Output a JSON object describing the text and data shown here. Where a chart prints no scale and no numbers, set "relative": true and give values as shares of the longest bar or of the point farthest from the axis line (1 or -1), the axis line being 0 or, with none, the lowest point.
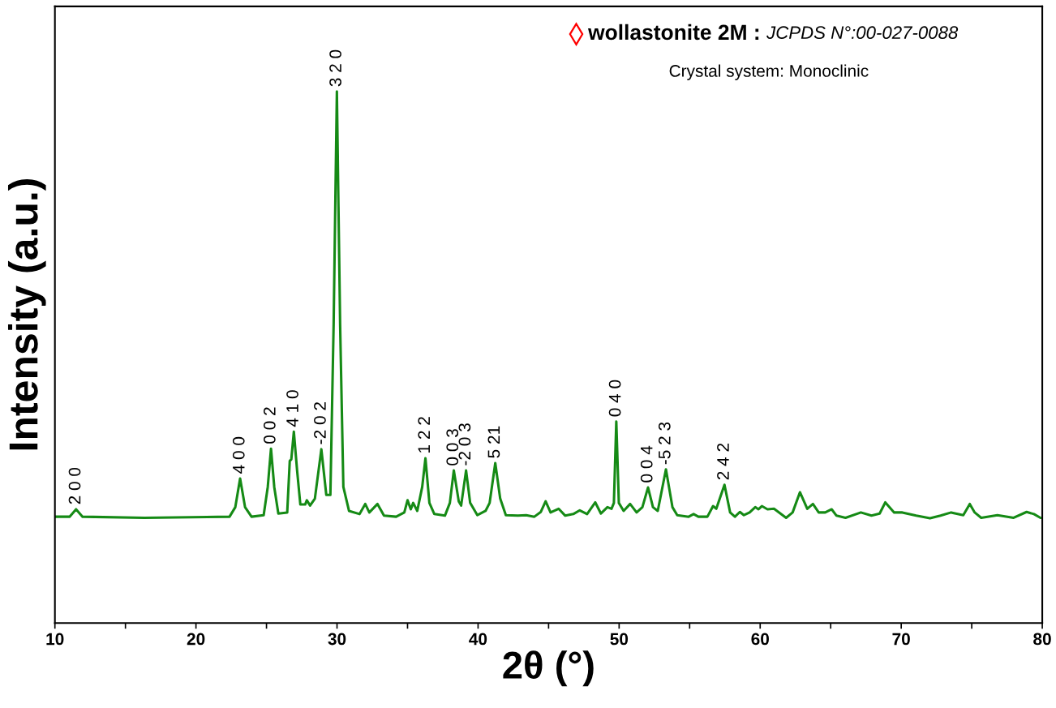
{
  "chart_data": {
    "type": "line",
    "relative": true,
    "xlabel": "2θ (°)",
    "ylabel": "Intensity (a.u.)",
    "xlim": [
      10,
      80
    ],
    "xticks": [
      10,
      {
        "value": 15,
        "label": null
      },
      20,
      {
        "value": 25,
        "label": null
      },
      30,
      {
        "value": 35,
        "label": null
      },
      40,
      {
        "value": 45,
        "label": null
      },
      50,
      {
        "value": 55,
        "label": null
      },
      60,
      {
        "value": 65,
        "label": null
      },
      70,
      {
        "value": 75,
        "label": null
      },
      80
    ],
    "tick_labels": "x",
    "grid": false,
    "legend": false,
    "series": [
      {
        "color": "#158a15",
        "x": [
          10.0,
          11.04,
          11.5,
          11.96,
          16.34,
          22.38,
          22.79,
          23.13,
          23.48,
          23.94,
          24.8,
          25.09,
          25.32,
          25.55,
          25.84,
          26.47,
          26.65,
          26.76,
          26.94,
          27.17,
          27.4,
          27.74,
          27.86,
          28.09,
          28.43,
          28.89,
          29.24,
          29.53,
          29.76,
          29.99,
          30.22,
          30.45,
          30.85,
          31.6,
          32.0,
          32.29,
          32.87,
          33.33,
          34.19,
          34.77,
          35.0,
          35.23,
          35.4,
          35.69,
          36.04,
          36.27,
          36.55,
          36.9,
          37.65,
          38.0,
          38.28,
          38.63,
          38.8,
          39.15,
          39.44,
          39.95,
          40.53,
          40.82,
          41.22,
          41.57,
          41.97,
          42.83,
          43.41,
          43.99,
          44.45,
          44.79,
          45.14,
          45.71,
          46.18,
          46.75,
          47.21,
          47.73,
          48.31,
          48.71,
          49.17,
          49.46,
          49.63,
          49.8,
          49.98,
          50.32,
          50.78,
          51.24,
          51.65,
          52.05,
          52.4,
          52.74,
          53.32,
          53.78,
          54.12,
          54.93,
          55.28,
          55.62,
          56.26,
          56.66,
          56.89,
          57.47,
          57.87,
          58.21,
          58.56,
          58.85,
          59.25,
          59.65,
          59.88,
          60.12,
          60.52,
          60.98,
          61.84,
          62.3,
          62.82,
          63.34,
          63.74,
          64.15,
          64.61,
          65.07,
          65.41,
          66.05,
          67.14,
          67.89,
          68.47,
          68.87,
          69.5,
          70.08,
          71.06,
          72.04,
          72.79,
          73.54,
          74.4,
          74.86,
          75.21,
          75.67,
          76.82,
          77.97,
          78.89,
          79.41,
          79.87
        ],
        "values": [
          0.2,
          0.2,
          0.214,
          0.2,
          0.198,
          0.2,
          0.218,
          0.272,
          0.218,
          0.2,
          0.203,
          0.256,
          0.328,
          0.256,
          0.206,
          0.208,
          0.305,
          0.308,
          0.36,
          0.287,
          0.223,
          0.223,
          0.231,
          0.221,
          0.234,
          0.327,
          0.241,
          0.241,
          0.562,
          1.0,
          0.562,
          0.256,
          0.211,
          0.205,
          0.224,
          0.208,
          0.224,
          0.202,
          0.2,
          0.208,
          0.231,
          0.214,
          0.226,
          0.211,
          0.256,
          0.31,
          0.226,
          0.205,
          0.202,
          0.226,
          0.287,
          0.229,
          0.221,
          0.287,
          0.226,
          0.203,
          0.211,
          0.226,
          0.301,
          0.234,
          0.203,
          0.202,
          0.203,
          0.2,
          0.209,
          0.229,
          0.208,
          0.215,
          0.202,
          0.205,
          0.212,
          0.205,
          0.227,
          0.206,
          0.218,
          0.215,
          0.226,
          0.379,
          0.226,
          0.211,
          0.224,
          0.208,
          0.218,
          0.255,
          0.218,
          0.211,
          0.289,
          0.218,
          0.203,
          0.2,
          0.205,
          0.2,
          0.2,
          0.22,
          0.215,
          0.26,
          0.208,
          0.2,
          0.209,
          0.203,
          0.208,
          0.218,
          0.214,
          0.22,
          0.214,
          0.215,
          0.198,
          0.208,
          0.246,
          0.215,
          0.224,
          0.208,
          0.208,
          0.214,
          0.202,
          0.198,
          0.208,
          0.202,
          0.206,
          0.227,
          0.208,
          0.208,
          0.202,
          0.197,
          0.202,
          0.208,
          0.203,
          0.224,
          0.208,
          0.198,
          0.203,
          0.198,
          0.209,
          0.205,
          0.198
        ]
      }
    ],
    "annotations": [
      {
        "text": "2 0 0",
        "x": 11.5,
        "y": 0.214
      },
      {
        "text": "4 0 0",
        "x": 23.13,
        "y": 0.272
      },
      {
        "text": "0 0 2",
        "x": 25.32,
        "y": 0.328
      },
      {
        "text": "4 1 0",
        "x": 26.94,
        "y": 0.36
      },
      {
        "text": "-2 0 2",
        "x": 28.89,
        "y": 0.327
      },
      {
        "text": "3 2 0",
        "x": 29.99,
        "y": 1.0
      },
      {
        "text": "1 2 2",
        "x": 36.27,
        "y": 0.31
      },
      {
        "text": "0 0 3",
        "x": 38.28,
        "y": 0.287
      },
      {
        "text": "-2 0 3",
        "x": 39.15,
        "y": 0.287
      },
      {
        "text": "5 21",
        "x": 41.22,
        "y": 0.301
      },
      {
        "text": "0 4 0",
        "x": 49.8,
        "y": 0.379
      },
      {
        "text": "0 0 4",
        "x": 52.05,
        "y": 0.255
      },
      {
        "text": "-5 2 3",
        "x": 53.32,
        "y": 0.289
      },
      {
        "text": "2 4 2",
        "x": 57.47,
        "y": 0.26
      },
      "wollastonite 2M :",
      "JCPDS N°:00-027-0088",
      "Crystal system: Monoclinic"
    ]
  }
}
